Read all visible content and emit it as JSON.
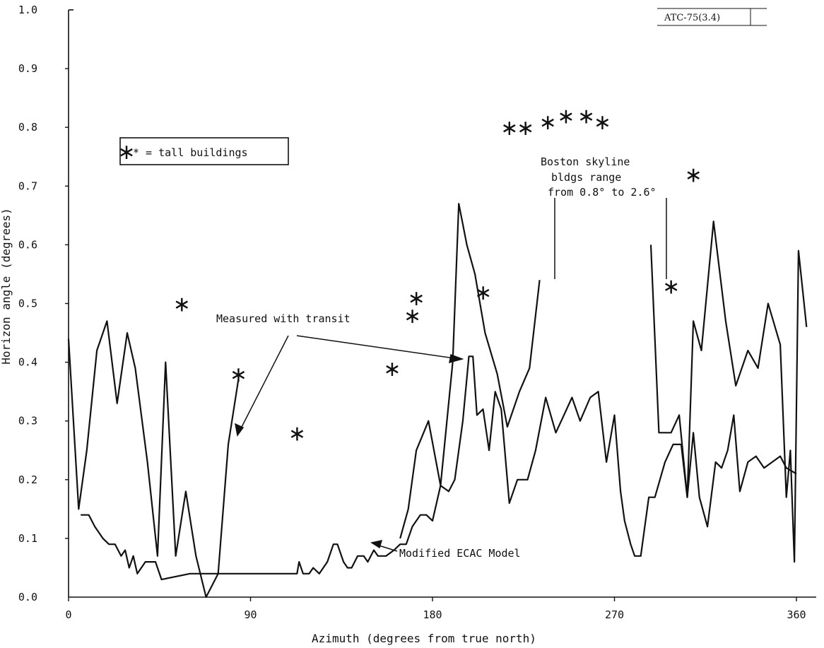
{
  "ref_tag": "ATC-75(3.4)",
  "chart_data": {
    "type": "line",
    "xlabel": "Azimuth (degrees from true north)",
    "ylabel": "Horizon angle (degrees)",
    "xlim": [
      0,
      360
    ],
    "ylim": [
      0,
      1.0
    ],
    "xticks": [
      "0",
      "90",
      "180",
      "270",
      "360"
    ],
    "yticks": [
      "0.0",
      "0.1",
      "0.2",
      "0.3",
      "0.4",
      "0.5",
      "0.6",
      "0.7",
      "0.8",
      "0.9",
      "1.0"
    ],
    "grid": false,
    "legend": "* = tall buildings",
    "annotations": {
      "measured": "Measured with transit",
      "model": "Modified ECAC Model",
      "skyline_1": "Boston skyline",
      "skyline_2": "bldgs range",
      "skyline_3": "from 0.8° to 2.6°"
    },
    "series": [
      {
        "segments": [
          [
            [
              0,
              0.44
            ],
            [
              5,
              0.15
            ],
            [
              9,
              0.25
            ],
            [
              14,
              0.42
            ],
            [
              19,
              0.47
            ],
            [
              24,
              0.33
            ],
            [
              29,
              0.45
            ],
            [
              33,
              0.39
            ],
            [
              39,
              0.23
            ],
            [
              44,
              0.07
            ],
            [
              48,
              0.4
            ],
            [
              53,
              0.07
            ],
            [
              58,
              0.18
            ],
            [
              63,
              0.07
            ],
            [
              68,
              0.0
            ],
            [
              74,
              0.04
            ],
            [
              79,
              0.26
            ],
            [
              84,
              0.37
            ]
          ],
          [
            [
              164,
              0.1
            ],
            [
              168,
              0.15
            ],
            [
              172,
              0.25
            ],
            [
              178,
              0.3
            ],
            [
              184,
              0.19
            ],
            [
              190,
              0.4
            ],
            [
              193,
              0.67
            ],
            [
              197,
              0.6
            ],
            [
              201,
              0.55
            ],
            [
              206,
              0.45
            ],
            [
              212,
              0.38
            ],
            [
              217,
              0.29
            ],
            [
              223,
              0.35
            ],
            [
              228,
              0.39
            ],
            [
              233,
              0.54
            ]
          ],
          [
            [
              288,
              0.6
            ],
            [
              292,
              0.28
            ],
            [
              298,
              0.28
            ],
            [
              302,
              0.31
            ],
            [
              306,
              0.17
            ],
            [
              309,
              0.47
            ],
            [
              313,
              0.42
            ],
            [
              319,
              0.64
            ],
            [
              325,
              0.47
            ],
            [
              330,
              0.36
            ],
            [
              336,
              0.42
            ],
            [
              341,
              0.39
            ],
            [
              346,
              0.5
            ],
            [
              352,
              0.43
            ],
            [
              355,
              0.17
            ],
            [
              357,
              0.25
            ],
            [
              359,
              0.06
            ],
            [
              361,
              0.59
            ],
            [
              365,
              0.46
            ]
          ]
        ]
      },
      {
        "segments": [
          [
            [
              6,
              0.14
            ],
            [
              8,
              0.14
            ],
            [
              10,
              0.14
            ],
            [
              13,
              0.12
            ],
            [
              17,
              0.1
            ],
            [
              20,
              0.09
            ],
            [
              23,
              0.09
            ],
            [
              26,
              0.07
            ],
            [
              28,
              0.08
            ],
            [
              30,
              0.05
            ],
            [
              32,
              0.07
            ],
            [
              34,
              0.04
            ],
            [
              38,
              0.06
            ],
            [
              43,
              0.06
            ],
            [
              46,
              0.03
            ],
            [
              60,
              0.04
            ],
            [
              80,
              0.04
            ],
            [
              100,
              0.04
            ],
            [
              113,
              0.04
            ],
            [
              114,
              0.06
            ],
            [
              116,
              0.04
            ],
            [
              119,
              0.04
            ],
            [
              121,
              0.05
            ],
            [
              124,
              0.04
            ],
            [
              128,
              0.06
            ],
            [
              131,
              0.09
            ],
            [
              133,
              0.09
            ],
            [
              136,
              0.06
            ],
            [
              138,
              0.05
            ],
            [
              140,
              0.05
            ],
            [
              143,
              0.07
            ],
            [
              146,
              0.07
            ],
            [
              148,
              0.06
            ],
            [
              151,
              0.08
            ],
            [
              153,
              0.07
            ],
            [
              157,
              0.07
            ],
            [
              161,
              0.08
            ],
            [
              164,
              0.09
            ],
            [
              167,
              0.09
            ],
            [
              170,
              0.12
            ],
            [
              174,
              0.14
            ],
            [
              177,
              0.14
            ],
            [
              180,
              0.13
            ],
            [
              184,
              0.19
            ],
            [
              188,
              0.18
            ],
            [
              191,
              0.2
            ],
            [
              195,
              0.3
            ],
            [
              198,
              0.41
            ],
            [
              200,
              0.41
            ],
            [
              202,
              0.31
            ],
            [
              205,
              0.32
            ],
            [
              208,
              0.25
            ],
            [
              211,
              0.35
            ],
            [
              214,
              0.32
            ],
            [
              218,
              0.16
            ],
            [
              222,
              0.2
            ],
            [
              227,
              0.2
            ],
            [
              231,
              0.25
            ],
            [
              236,
              0.34
            ],
            [
              241,
              0.28
            ],
            [
              245,
              0.31
            ],
            [
              249,
              0.34
            ],
            [
              253,
              0.3
            ],
            [
              258,
              0.34
            ],
            [
              262,
              0.35
            ],
            [
              266,
              0.23
            ],
            [
              270,
              0.31
            ],
            [
              273,
              0.18
            ],
            [
              275,
              0.13
            ],
            [
              278,
              0.09
            ],
            [
              280,
              0.07
            ],
            [
              283,
              0.07
            ],
            [
              287,
              0.17
            ],
            [
              290,
              0.17
            ],
            [
              295,
              0.23
            ],
            [
              299,
              0.26
            ],
            [
              303,
              0.26
            ],
            [
              306,
              0.17
            ],
            [
              309,
              0.28
            ],
            [
              312,
              0.17
            ],
            [
              316,
              0.12
            ],
            [
              320,
              0.23
            ],
            [
              323,
              0.22
            ],
            [
              326,
              0.25
            ],
            [
              329,
              0.31
            ],
            [
              332,
              0.18
            ],
            [
              336,
              0.23
            ],
            [
              340,
              0.24
            ],
            [
              344,
              0.22
            ],
            [
              348,
              0.23
            ],
            [
              352,
              0.24
            ],
            [
              355,
              0.22
            ],
            [
              360,
              0.21
            ]
          ]
        ]
      }
    ],
    "tall_buildings": [
      [
        56,
        0.5
      ],
      [
        84,
        0.38
      ],
      [
        113,
        0.28
      ],
      [
        160,
        0.39
      ],
      [
        170,
        0.48
      ],
      [
        172,
        0.51
      ],
      [
        205,
        0.52
      ],
      [
        218,
        0.8
      ],
      [
        226,
        0.8
      ],
      [
        237,
        0.81
      ],
      [
        246,
        0.82
      ],
      [
        256,
        0.82
      ],
      [
        264,
        0.81
      ],
      [
        298,
        0.53
      ],
      [
        309,
        0.72
      ]
    ]
  }
}
